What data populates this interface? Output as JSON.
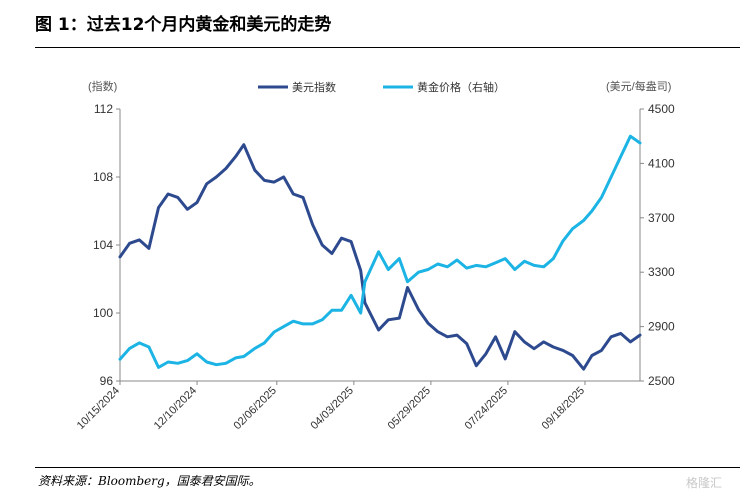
{
  "header": {
    "title": "图 1：过去12个月内黄金和美元的走势"
  },
  "footer": {
    "source": "资料来源：Bloomberg，国泰君安国际。",
    "watermark": "格隆汇"
  },
  "chart_data": {
    "type": "line",
    "y_left_unit": "(指数)",
    "y_right_unit": "(美元/每盎司)",
    "ylim_left": [
      96,
      112
    ],
    "ylim_right": [
      2500,
      4500
    ],
    "yticks_left": [
      96,
      100,
      104,
      108,
      112
    ],
    "yticks_right": [
      2500,
      2900,
      3300,
      3700,
      4100,
      4500
    ],
    "xticks": [
      "10/15/2024",
      "12/10/2024",
      "02/06/2025",
      "04/03/2025",
      "05/29/2025",
      "07/24/2025",
      "09/18/2025"
    ],
    "series": [
      {
        "name": "美元指数",
        "axis": "left",
        "color": "#2e4a8f",
        "x": [
          "2024-10-15",
          "2024-10-22",
          "2024-10-29",
          "2024-11-05",
          "2024-11-12",
          "2024-11-19",
          "2024-11-26",
          "2024-12-03",
          "2024-12-10",
          "2024-12-17",
          "2024-12-24",
          "2024-12-31",
          "2025-01-07",
          "2025-01-13",
          "2025-01-21",
          "2025-01-28",
          "2025-02-04",
          "2025-02-11",
          "2025-02-18",
          "2025-02-25",
          "2025-03-04",
          "2025-03-11",
          "2025-03-18",
          "2025-03-25",
          "2025-04-01",
          "2025-04-08",
          "2025-04-11",
          "2025-04-21",
          "2025-04-28",
          "2025-05-06",
          "2025-05-12",
          "2025-05-20",
          "2025-05-27",
          "2025-06-03",
          "2025-06-10",
          "2025-06-17",
          "2025-06-24",
          "2025-07-01",
          "2025-07-08",
          "2025-07-15",
          "2025-07-22",
          "2025-07-29",
          "2025-08-05",
          "2025-08-12",
          "2025-08-19",
          "2025-08-26",
          "2025-09-02",
          "2025-09-09",
          "2025-09-17",
          "2025-09-23",
          "2025-09-30",
          "2025-10-07",
          "2025-10-14",
          "2025-10-21",
          "2025-10-28"
        ],
        "values": [
          103.3,
          104.1,
          104.3,
          103.8,
          106.2,
          107.0,
          106.8,
          106.1,
          106.5,
          107.6,
          108.0,
          108.5,
          109.2,
          109.9,
          108.4,
          107.8,
          107.7,
          108.0,
          107.0,
          106.8,
          105.2,
          104.0,
          103.5,
          104.4,
          104.2,
          102.5,
          100.6,
          99.0,
          99.6,
          99.7,
          101.5,
          100.2,
          99.4,
          98.9,
          98.6,
          98.7,
          98.2,
          96.9,
          97.6,
          98.6,
          97.3,
          98.9,
          98.3,
          97.9,
          98.3,
          98.0,
          97.8,
          97.5,
          96.7,
          97.5,
          97.8,
          98.6,
          98.8,
          98.3,
          98.7
        ]
      },
      {
        "name": "黄金价格（右轴）",
        "axis": "right",
        "color": "#1bb4e4",
        "x": [
          "2024-10-15",
          "2024-10-22",
          "2024-10-29",
          "2024-11-05",
          "2024-11-12",
          "2024-11-19",
          "2024-11-26",
          "2024-12-03",
          "2024-12-10",
          "2024-12-17",
          "2024-12-24",
          "2024-12-31",
          "2025-01-07",
          "2025-01-13",
          "2025-01-21",
          "2025-01-28",
          "2025-02-04",
          "2025-02-11",
          "2025-02-18",
          "2025-02-25",
          "2025-03-04",
          "2025-03-11",
          "2025-03-18",
          "2025-03-25",
          "2025-04-01",
          "2025-04-08",
          "2025-04-11",
          "2025-04-21",
          "2025-04-28",
          "2025-05-06",
          "2025-05-12",
          "2025-05-20",
          "2025-05-27",
          "2025-06-03",
          "2025-06-10",
          "2025-06-17",
          "2025-06-24",
          "2025-07-01",
          "2025-07-08",
          "2025-07-15",
          "2025-07-22",
          "2025-07-29",
          "2025-08-05",
          "2025-08-12",
          "2025-08-19",
          "2025-08-26",
          "2025-09-02",
          "2025-09-09",
          "2025-09-17",
          "2025-09-23",
          "2025-09-30",
          "2025-10-07",
          "2025-10-14",
          "2025-10-21",
          "2025-10-28"
        ],
        "values": [
          2660,
          2740,
          2780,
          2750,
          2600,
          2640,
          2630,
          2650,
          2700,
          2640,
          2620,
          2630,
          2670,
          2680,
          2740,
          2780,
          2860,
          2900,
          2940,
          2920,
          2920,
          2950,
          3020,
          3020,
          3130,
          3000,
          3230,
          3450,
          3320,
          3400,
          3230,
          3300,
          3320,
          3360,
          3340,
          3390,
          3330,
          3350,
          3340,
          3370,
          3400,
          3320,
          3380,
          3350,
          3340,
          3400,
          3530,
          3620,
          3680,
          3750,
          3850,
          4000,
          4150,
          4300,
          4250
        ]
      }
    ],
    "grid": false,
    "legend_position": "top"
  }
}
